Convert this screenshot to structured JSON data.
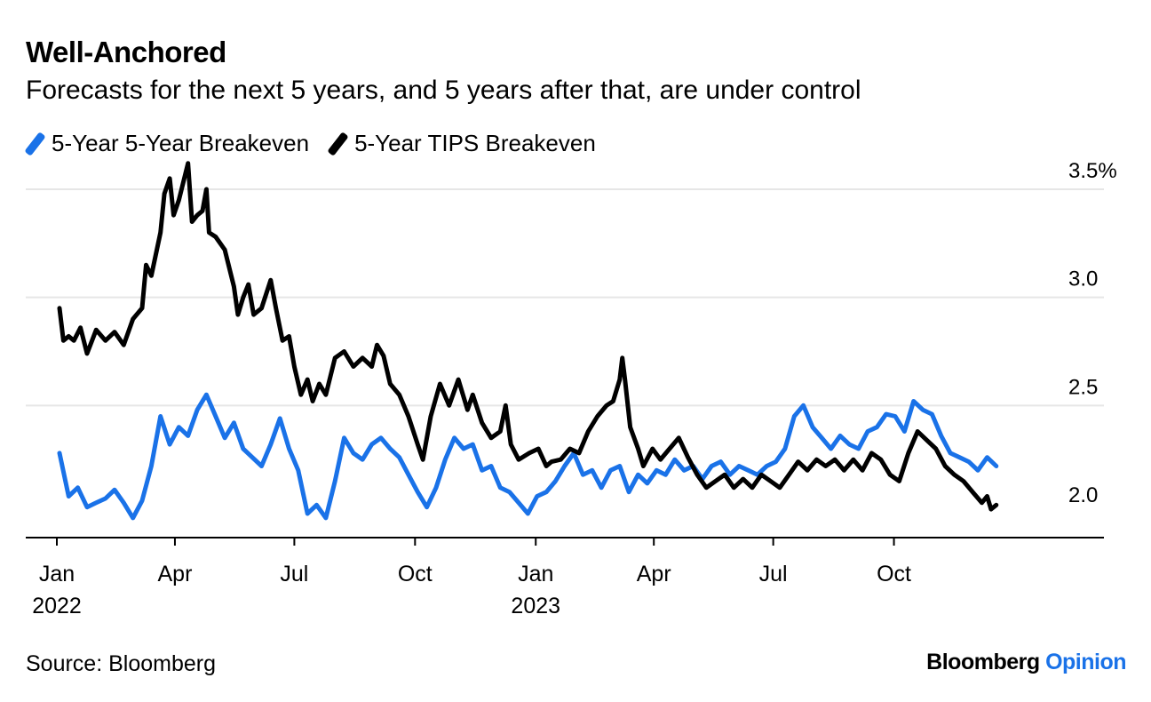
{
  "colors": {
    "accent": "#1a72e8",
    "series_black": "#000000",
    "grid": "#e6e6e6",
    "axis": "#000000"
  },
  "brand": {
    "name": "Bloomberg",
    "product": "Opinion"
  },
  "source": "Source: Bloomberg",
  "chart_data": {
    "type": "line",
    "title": "Well-Anchored",
    "subtitle": "Forecasts for the next 5 years, and 5 years after that, are under control",
    "xlabel": "",
    "ylabel": "",
    "ylim": [
      1.9,
      3.65
    ],
    "y_ticks": [
      2.0,
      2.5,
      3.0,
      3.5
    ],
    "y_tick_labels": [
      "2.0",
      "2.5",
      "3.0",
      "3.5%"
    ],
    "x_ticks": [
      {
        "date": "2022-01-01",
        "label": "Jan",
        "year": "2022"
      },
      {
        "date": "2022-04-01",
        "label": "Apr",
        "year": ""
      },
      {
        "date": "2022-07-01",
        "label": "Jul",
        "year": ""
      },
      {
        "date": "2022-10-01",
        "label": "Oct",
        "year": ""
      },
      {
        "date": "2023-01-01",
        "label": "Jan",
        "year": "2023"
      },
      {
        "date": "2023-04-01",
        "label": "Apr",
        "year": ""
      },
      {
        "date": "2023-07-01",
        "label": "Jul",
        "year": ""
      },
      {
        "date": "2023-10-01",
        "label": "Oct",
        "year": ""
      }
    ],
    "xlim": [
      "2022-01-01",
      "2023-12-31"
    ],
    "grid": true,
    "legend_position": "top-left",
    "series": [
      {
        "name": "5-Year 5-Year Breakeven",
        "color": "#1a72e8",
        "points": [
          [
            "2022-01-03",
            2.28
          ],
          [
            "2022-01-10",
            2.08
          ],
          [
            "2022-01-17",
            2.12
          ],
          [
            "2022-01-24",
            2.03
          ],
          [
            "2022-01-31",
            2.05
          ],
          [
            "2022-02-07",
            2.07
          ],
          [
            "2022-02-14",
            2.11
          ],
          [
            "2022-02-21",
            2.05
          ],
          [
            "2022-02-28",
            1.98
          ],
          [
            "2022-03-07",
            2.06
          ],
          [
            "2022-03-14",
            2.22
          ],
          [
            "2022-03-21",
            2.45
          ],
          [
            "2022-03-28",
            2.32
          ],
          [
            "2022-04-04",
            2.4
          ],
          [
            "2022-04-11",
            2.36
          ],
          [
            "2022-04-18",
            2.48
          ],
          [
            "2022-04-25",
            2.55
          ],
          [
            "2022-05-02",
            2.45
          ],
          [
            "2022-05-09",
            2.35
          ],
          [
            "2022-05-16",
            2.42
          ],
          [
            "2022-05-23",
            2.3
          ],
          [
            "2022-05-30",
            2.26
          ],
          [
            "2022-06-06",
            2.22
          ],
          [
            "2022-06-13",
            2.32
          ],
          [
            "2022-06-20",
            2.44
          ],
          [
            "2022-06-27",
            2.3
          ],
          [
            "2022-07-04",
            2.2
          ],
          [
            "2022-07-11",
            2.0
          ],
          [
            "2022-07-18",
            2.04
          ],
          [
            "2022-07-25",
            1.98
          ],
          [
            "2022-08-01",
            2.15
          ],
          [
            "2022-08-08",
            2.35
          ],
          [
            "2022-08-15",
            2.28
          ],
          [
            "2022-08-22",
            2.25
          ],
          [
            "2022-08-29",
            2.32
          ],
          [
            "2022-09-05",
            2.35
          ],
          [
            "2022-09-12",
            2.3
          ],
          [
            "2022-09-19",
            2.26
          ],
          [
            "2022-09-26",
            2.18
          ],
          [
            "2022-10-03",
            2.1
          ],
          [
            "2022-10-10",
            2.03
          ],
          [
            "2022-10-17",
            2.12
          ],
          [
            "2022-10-24",
            2.25
          ],
          [
            "2022-10-31",
            2.35
          ],
          [
            "2022-11-07",
            2.3
          ],
          [
            "2022-11-14",
            2.32
          ],
          [
            "2022-11-21",
            2.2
          ],
          [
            "2022-11-28",
            2.22
          ],
          [
            "2022-12-05",
            2.12
          ],
          [
            "2022-12-12",
            2.1
          ],
          [
            "2022-12-19",
            2.05
          ],
          [
            "2022-12-26",
            2.0
          ],
          [
            "2023-01-02",
            2.08
          ],
          [
            "2023-01-09",
            2.1
          ],
          [
            "2023-01-16",
            2.15
          ],
          [
            "2023-01-23",
            2.22
          ],
          [
            "2023-01-30",
            2.28
          ],
          [
            "2023-02-06",
            2.18
          ],
          [
            "2023-02-13",
            2.2
          ],
          [
            "2023-02-20",
            2.12
          ],
          [
            "2023-02-27",
            2.2
          ],
          [
            "2023-03-06",
            2.22
          ],
          [
            "2023-03-13",
            2.1
          ],
          [
            "2023-03-20",
            2.18
          ],
          [
            "2023-03-27",
            2.14
          ],
          [
            "2023-04-03",
            2.2
          ],
          [
            "2023-04-10",
            2.18
          ],
          [
            "2023-04-17",
            2.25
          ],
          [
            "2023-04-24",
            2.2
          ],
          [
            "2023-05-01",
            2.22
          ],
          [
            "2023-05-08",
            2.16
          ],
          [
            "2023-05-15",
            2.22
          ],
          [
            "2023-05-22",
            2.24
          ],
          [
            "2023-05-29",
            2.18
          ],
          [
            "2023-06-05",
            2.22
          ],
          [
            "2023-06-12",
            2.2
          ],
          [
            "2023-06-19",
            2.18
          ],
          [
            "2023-06-26",
            2.22
          ],
          [
            "2023-07-03",
            2.24
          ],
          [
            "2023-07-10",
            2.3
          ],
          [
            "2023-07-17",
            2.45
          ],
          [
            "2023-07-24",
            2.5
          ],
          [
            "2023-07-31",
            2.4
          ],
          [
            "2023-08-07",
            2.35
          ],
          [
            "2023-08-14",
            2.3
          ],
          [
            "2023-08-21",
            2.36
          ],
          [
            "2023-08-28",
            2.32
          ],
          [
            "2023-09-04",
            2.3
          ],
          [
            "2023-09-11",
            2.38
          ],
          [
            "2023-09-18",
            2.4
          ],
          [
            "2023-09-25",
            2.46
          ],
          [
            "2023-10-02",
            2.45
          ],
          [
            "2023-10-09",
            2.38
          ],
          [
            "2023-10-16",
            2.52
          ],
          [
            "2023-10-23",
            2.48
          ],
          [
            "2023-10-30",
            2.46
          ],
          [
            "2023-11-06",
            2.36
          ],
          [
            "2023-11-13",
            2.28
          ],
          [
            "2023-11-20",
            2.26
          ],
          [
            "2023-11-27",
            2.24
          ],
          [
            "2023-12-04",
            2.2
          ],
          [
            "2023-12-11",
            2.26
          ],
          [
            "2023-12-18",
            2.22
          ]
        ]
      },
      {
        "name": "5-Year TIPS Breakeven",
        "color": "#000000",
        "points": [
          [
            "2022-01-03",
            2.95
          ],
          [
            "2022-01-06",
            2.8
          ],
          [
            "2022-01-10",
            2.82
          ],
          [
            "2022-01-14",
            2.8
          ],
          [
            "2022-01-19",
            2.86
          ],
          [
            "2022-01-24",
            2.74
          ],
          [
            "2022-01-31",
            2.85
          ],
          [
            "2022-02-07",
            2.8
          ],
          [
            "2022-02-14",
            2.84
          ],
          [
            "2022-02-21",
            2.78
          ],
          [
            "2022-02-28",
            2.9
          ],
          [
            "2022-03-07",
            2.95
          ],
          [
            "2022-03-10",
            3.15
          ],
          [
            "2022-03-14",
            3.1
          ],
          [
            "2022-03-21",
            3.3
          ],
          [
            "2022-03-24",
            3.48
          ],
          [
            "2022-03-28",
            3.55
          ],
          [
            "2022-03-31",
            3.38
          ],
          [
            "2022-04-04",
            3.45
          ],
          [
            "2022-04-11",
            3.62
          ],
          [
            "2022-04-14",
            3.35
          ],
          [
            "2022-04-18",
            3.38
          ],
          [
            "2022-04-22",
            3.4
          ],
          [
            "2022-04-25",
            3.5
          ],
          [
            "2022-04-27",
            3.3
          ],
          [
            "2022-05-02",
            3.28
          ],
          [
            "2022-05-09",
            3.22
          ],
          [
            "2022-05-16",
            3.05
          ],
          [
            "2022-05-19",
            2.92
          ],
          [
            "2022-05-23",
            3.0
          ],
          [
            "2022-05-27",
            3.06
          ],
          [
            "2022-05-31",
            2.92
          ],
          [
            "2022-06-06",
            2.95
          ],
          [
            "2022-06-13",
            3.08
          ],
          [
            "2022-06-17",
            2.95
          ],
          [
            "2022-06-22",
            2.8
          ],
          [
            "2022-06-27",
            2.82
          ],
          [
            "2022-07-01",
            2.68
          ],
          [
            "2022-07-06",
            2.55
          ],
          [
            "2022-07-11",
            2.62
          ],
          [
            "2022-07-15",
            2.52
          ],
          [
            "2022-07-20",
            2.6
          ],
          [
            "2022-07-25",
            2.55
          ],
          [
            "2022-08-01",
            2.72
          ],
          [
            "2022-08-08",
            2.75
          ],
          [
            "2022-08-15",
            2.68
          ],
          [
            "2022-08-22",
            2.72
          ],
          [
            "2022-08-29",
            2.68
          ],
          [
            "2022-09-02",
            2.78
          ],
          [
            "2022-09-07",
            2.73
          ],
          [
            "2022-09-12",
            2.6
          ],
          [
            "2022-09-19",
            2.55
          ],
          [
            "2022-09-26",
            2.45
          ],
          [
            "2022-10-03",
            2.32
          ],
          [
            "2022-10-07",
            2.25
          ],
          [
            "2022-10-13",
            2.45
          ],
          [
            "2022-10-20",
            2.6
          ],
          [
            "2022-10-27",
            2.5
          ],
          [
            "2022-11-03",
            2.62
          ],
          [
            "2022-11-10",
            2.48
          ],
          [
            "2022-11-14",
            2.55
          ],
          [
            "2022-11-21",
            2.42
          ],
          [
            "2022-11-28",
            2.35
          ],
          [
            "2022-12-05",
            2.38
          ],
          [
            "2022-12-09",
            2.5
          ],
          [
            "2022-12-13",
            2.32
          ],
          [
            "2022-12-19",
            2.25
          ],
          [
            "2022-12-27",
            2.28
          ],
          [
            "2023-01-03",
            2.3
          ],
          [
            "2023-01-09",
            2.22
          ],
          [
            "2023-01-13",
            2.24
          ],
          [
            "2023-01-20",
            2.25
          ],
          [
            "2023-01-27",
            2.3
          ],
          [
            "2023-02-03",
            2.28
          ],
          [
            "2023-02-10",
            2.38
          ],
          [
            "2023-02-17",
            2.45
          ],
          [
            "2023-02-24",
            2.5
          ],
          [
            "2023-03-01",
            2.52
          ],
          [
            "2023-03-06",
            2.62
          ],
          [
            "2023-03-08",
            2.72
          ],
          [
            "2023-03-10",
            2.62
          ],
          [
            "2023-03-14",
            2.4
          ],
          [
            "2023-03-20",
            2.3
          ],
          [
            "2023-03-24",
            2.22
          ],
          [
            "2023-03-31",
            2.3
          ],
          [
            "2023-04-06",
            2.25
          ],
          [
            "2023-04-13",
            2.3
          ],
          [
            "2023-04-20",
            2.35
          ],
          [
            "2023-04-27",
            2.26
          ],
          [
            "2023-05-04",
            2.18
          ],
          [
            "2023-05-11",
            2.12
          ],
          [
            "2023-05-18",
            2.15
          ],
          [
            "2023-05-25",
            2.18
          ],
          [
            "2023-06-01",
            2.12
          ],
          [
            "2023-06-08",
            2.16
          ],
          [
            "2023-06-15",
            2.12
          ],
          [
            "2023-06-22",
            2.18
          ],
          [
            "2023-06-29",
            2.15
          ],
          [
            "2023-07-06",
            2.12
          ],
          [
            "2023-07-13",
            2.18
          ],
          [
            "2023-07-20",
            2.24
          ],
          [
            "2023-07-27",
            2.2
          ],
          [
            "2023-08-03",
            2.25
          ],
          [
            "2023-08-10",
            2.22
          ],
          [
            "2023-08-17",
            2.25
          ],
          [
            "2023-08-24",
            2.2
          ],
          [
            "2023-08-31",
            2.25
          ],
          [
            "2023-09-07",
            2.2
          ],
          [
            "2023-09-14",
            2.28
          ],
          [
            "2023-09-21",
            2.25
          ],
          [
            "2023-09-28",
            2.18
          ],
          [
            "2023-10-05",
            2.15
          ],
          [
            "2023-10-12",
            2.28
          ],
          [
            "2023-10-19",
            2.38
          ],
          [
            "2023-10-26",
            2.34
          ],
          [
            "2023-11-02",
            2.3
          ],
          [
            "2023-11-09",
            2.22
          ],
          [
            "2023-11-16",
            2.18
          ],
          [
            "2023-11-23",
            2.15
          ],
          [
            "2023-11-30",
            2.1
          ],
          [
            "2023-12-07",
            2.05
          ],
          [
            "2023-12-11",
            2.08
          ],
          [
            "2023-12-14",
            2.02
          ],
          [
            "2023-12-18",
            2.04
          ]
        ]
      }
    ]
  }
}
